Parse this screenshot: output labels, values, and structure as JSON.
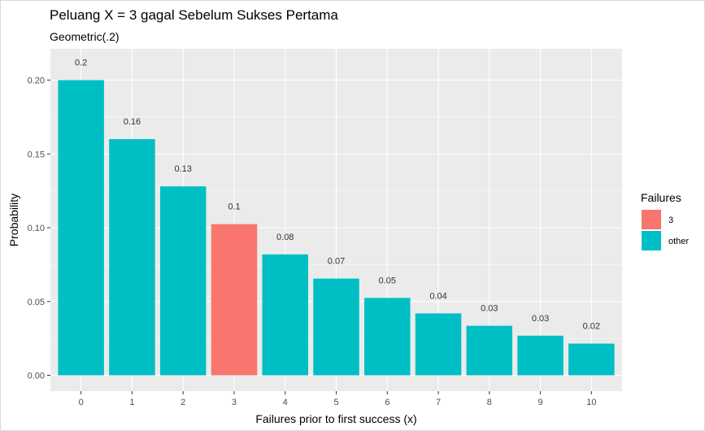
{
  "chart_data": {
    "type": "bar",
    "title": "Peluang X = 3 gagal Sebelum Sukses Pertama",
    "subtitle": "Geometric(.2)",
    "xlabel": "Failures prior to first success (x)",
    "ylabel": "Probability",
    "categories": [
      "0",
      "1",
      "2",
      "3",
      "4",
      "5",
      "6",
      "7",
      "8",
      "9",
      "10"
    ],
    "values": [
      0.2,
      0.16,
      0.128,
      0.1024,
      0.08192,
      0.065536,
      0.0524288,
      0.04194304,
      0.033554432,
      0.0268435456,
      0.02147483648
    ],
    "labels": [
      "0.2",
      "0.16",
      "0.13",
      "0.1",
      "0.08",
      "0.07",
      "0.05",
      "0.04",
      "0.03",
      "0.03",
      "0.02"
    ],
    "groups": [
      "other",
      "other",
      "other",
      "3",
      "other",
      "other",
      "other",
      "other",
      "other",
      "other",
      "other"
    ],
    "ylim": [
      0,
      0.21
    ],
    "yticks": [
      0.0,
      0.05,
      0.1,
      0.15,
      0.2
    ],
    "ytick_labels": [
      "0.00",
      "0.05",
      "0.10",
      "0.15",
      "0.20"
    ],
    "grid": true,
    "legend": {
      "title": "Failures",
      "placement": "right",
      "items": [
        {
          "label": "3",
          "color": "#F8766D"
        },
        {
          "label": "other",
          "color": "#00BFC4"
        }
      ]
    },
    "colors": {
      "panel_background": "#EBEBEB",
      "grid": "#FFFFFF",
      "highlight": "#F8766D",
      "other": "#00BFC4"
    }
  }
}
